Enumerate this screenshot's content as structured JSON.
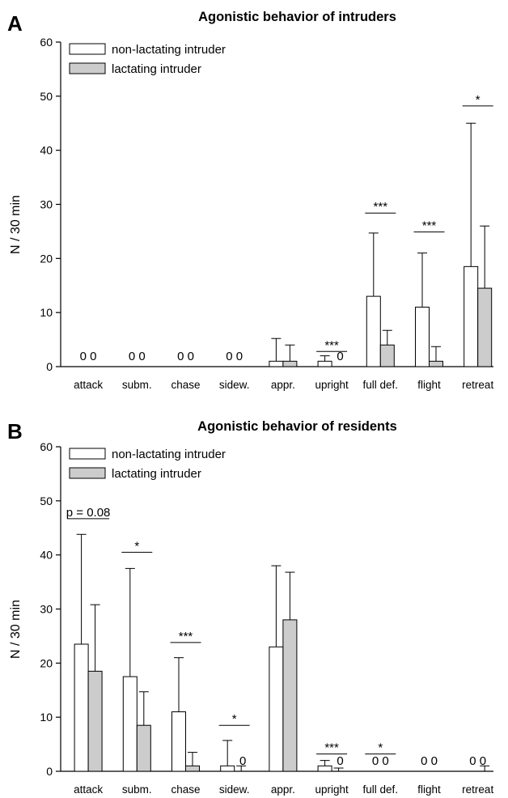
{
  "chart_data": [
    {
      "type": "bar",
      "panel": "A",
      "title": "Agonistic behavior of intruders",
      "ylabel": "N / 30 min",
      "xlabel": "",
      "ylim": [
        0,
        60
      ],
      "yticks": [
        "0",
        "10",
        "20",
        "30",
        "40",
        "50",
        "60"
      ],
      "grid": false,
      "legend_position": "top-left",
      "categories": [
        "attack",
        "subm.",
        "chase",
        "sidew.",
        "appr.",
        "upright",
        "full def.",
        "flight",
        "retreat"
      ],
      "series": [
        {
          "name": "non-lactating intruder",
          "color": "#ffffff",
          "values": [
            0,
            0,
            0,
            0,
            1,
            1,
            13,
            11,
            18.5
          ],
          "error": [
            0,
            0,
            0,
            0,
            4.2,
            1,
            11.7,
            10,
            26.5
          ]
        },
        {
          "name": "lactating intruder",
          "color": "#cccccc",
          "values": [
            0,
            0,
            0,
            0,
            1,
            0,
            4,
            1,
            14.5
          ],
          "error": [
            0,
            0,
            0,
            0,
            3,
            0,
            2.7,
            2.7,
            11.5
          ]
        }
      ],
      "zero_labels": [
        {
          "cat": 0,
          "text": "0 0"
        },
        {
          "cat": 1,
          "text": "0 0"
        },
        {
          "cat": 2,
          "text": "0 0"
        },
        {
          "cat": 3,
          "text": "0 0"
        },
        {
          "cat": 5,
          "text": "0",
          "series": 1
        }
      ],
      "annotations": [
        {
          "cat": 5,
          "text": "***",
          "y": 2.8
        },
        {
          "cat": 6,
          "text": "***",
          "y": 28.4
        },
        {
          "cat": 7,
          "text": "***",
          "y": 24.9
        },
        {
          "cat": 8,
          "text": "*",
          "y": 48.2
        }
      ]
    },
    {
      "type": "bar",
      "panel": "B",
      "title": "Agonistic behavior of residents",
      "ylabel": "N / 30 min",
      "xlabel": "",
      "ylim": [
        0,
        60
      ],
      "yticks": [
        "0",
        "10",
        "20",
        "30",
        "40",
        "50",
        "60"
      ],
      "grid": false,
      "legend_position": "top-left",
      "categories": [
        "attack",
        "subm.",
        "chase",
        "sidew.",
        "appr.",
        "upright",
        "full def.",
        "flight",
        "retreat"
      ],
      "series": [
        {
          "name": "non-lactating intruder",
          "color": "#ffffff",
          "values": [
            23.5,
            17.5,
            11,
            1,
            23,
            1,
            0,
            0,
            0
          ],
          "error": [
            20.3,
            20,
            10,
            4.7,
            15,
            1,
            0,
            0,
            0
          ]
        },
        {
          "name": "lactating intruder",
          "color": "#cccccc",
          "values": [
            18.5,
            8.5,
            1,
            0,
            28,
            0,
            0,
            0,
            0
          ],
          "error": [
            12.3,
            6.2,
            2.5,
            1,
            8.8,
            0.6,
            0,
            0,
            1
          ]
        }
      ],
      "zero_labels": [
        {
          "cat": 3,
          "text": "0",
          "series": 1
        },
        {
          "cat": 5,
          "text": "0",
          "series": 1
        },
        {
          "cat": 6,
          "text": "0 0"
        },
        {
          "cat": 7,
          "text": "0 0"
        },
        {
          "cat": 8,
          "text": "0 0"
        }
      ],
      "annotations": [
        {
          "cat": 0,
          "text": "p = 0.08",
          "y": 46.7,
          "wide": true
        },
        {
          "cat": 1,
          "text": "*",
          "y": 40.5
        },
        {
          "cat": 2,
          "text": "***",
          "y": 23.8
        },
        {
          "cat": 3,
          "text": "*",
          "y": 8.5
        },
        {
          "cat": 5,
          "text": "***",
          "y": 3.2
        },
        {
          "cat": 6,
          "text": "*",
          "y": 3.2
        }
      ]
    }
  ]
}
